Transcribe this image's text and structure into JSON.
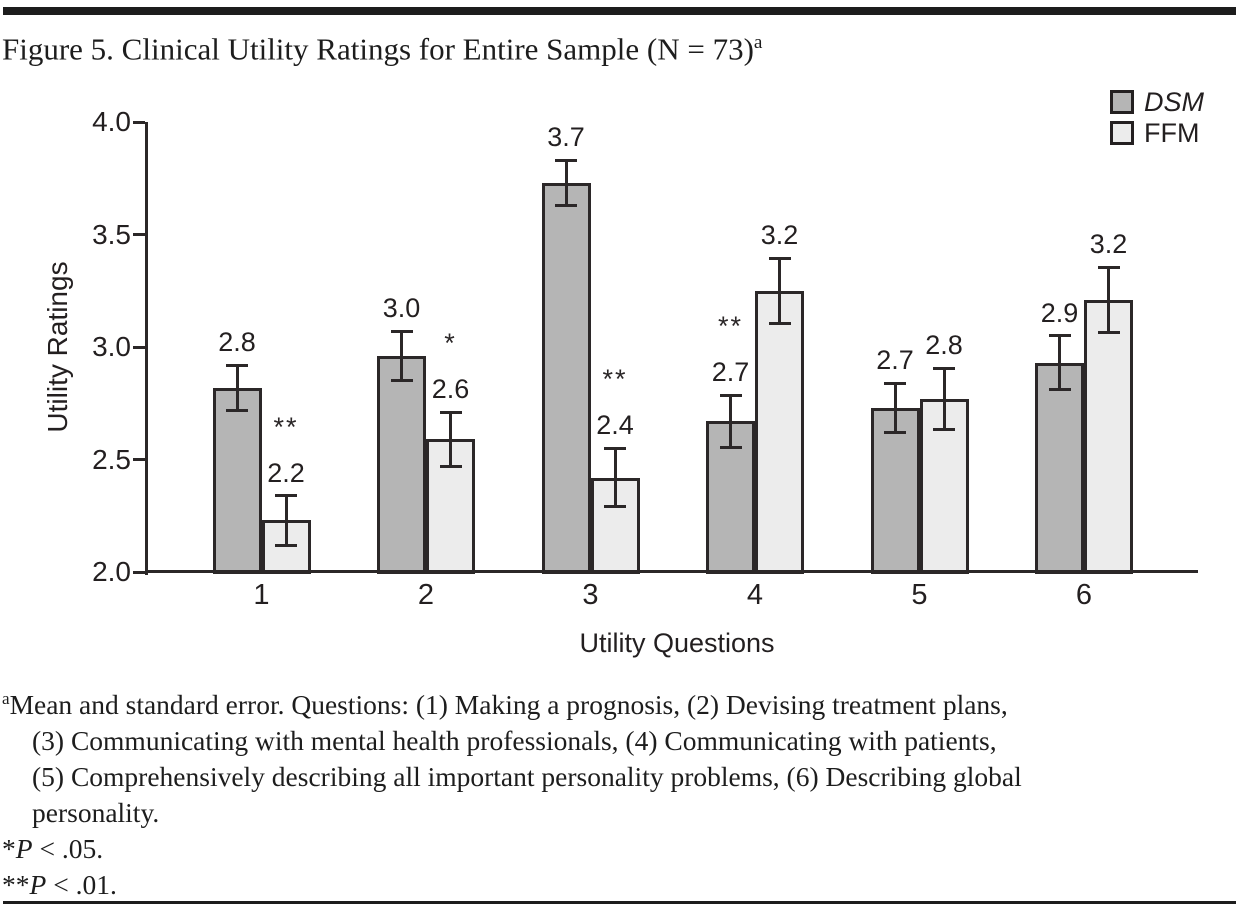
{
  "figure": {
    "title": "Figure 5. Clinical Utility Ratings for Entire Sample (N = 73)",
    "title_superscript": "a"
  },
  "chart_data": {
    "type": "bar",
    "title": "Clinical Utility Ratings for Entire Sample (N = 73)",
    "xlabel": "Utility Questions",
    "ylabel": "Utility Ratings",
    "ylim": [
      2.0,
      4.0
    ],
    "grid": false,
    "legend_position": "top-right",
    "yticks": [
      {
        "value": 4.0,
        "label": "4.0"
      },
      {
        "value": 3.5,
        "label": "3.5"
      },
      {
        "value": 3.0,
        "label": "3.0"
      },
      {
        "value": 2.5,
        "label": "2.5"
      },
      {
        "value": 2.0,
        "label": "2.0"
      }
    ],
    "categories": [
      "1",
      "2",
      "3",
      "4",
      "5",
      "6"
    ],
    "series": [
      {
        "name": "DSM",
        "fill": "#b5b5b5",
        "values": [
          2.82,
          2.96,
          3.73,
          2.67,
          2.73,
          2.93
        ],
        "labels": [
          "2.8",
          "3.0",
          "3.7",
          "2.7",
          "2.7",
          "2.9"
        ],
        "errors": [
          0.1,
          0.11,
          0.1,
          0.115,
          0.11,
          0.12
        ],
        "sig": [
          "",
          "",
          "",
          "**",
          "",
          ""
        ]
      },
      {
        "name": "FFM",
        "fill": "#ececec",
        "values": [
          2.23,
          2.59,
          2.42,
          3.25,
          2.77,
          3.21
        ],
        "labels": [
          "2.2",
          "2.6",
          "2.4",
          "3.2",
          "2.8",
          "3.2"
        ],
        "errors": [
          0.11,
          0.12,
          0.13,
          0.145,
          0.135,
          0.145
        ],
        "sig": [
          "**",
          "*",
          "**",
          "",
          "",
          ""
        ]
      }
    ]
  },
  "footnote": {
    "superscript": "a",
    "lines": [
      "Mean and standard error. Questions: (1) Making a prognosis, (2) Devising treatment plans,",
      "(3) Communicating with mental health professionals, (4) Communicating with patients,",
      "(5) Comprehensively describing all important personality problems, (6) Describing global",
      "personality."
    ],
    "sig_notes": [
      {
        "marker": "*",
        "p": "P",
        "rest": " < .05."
      },
      {
        "marker": "**",
        "p": "P",
        "rest": " < .01."
      }
    ]
  }
}
